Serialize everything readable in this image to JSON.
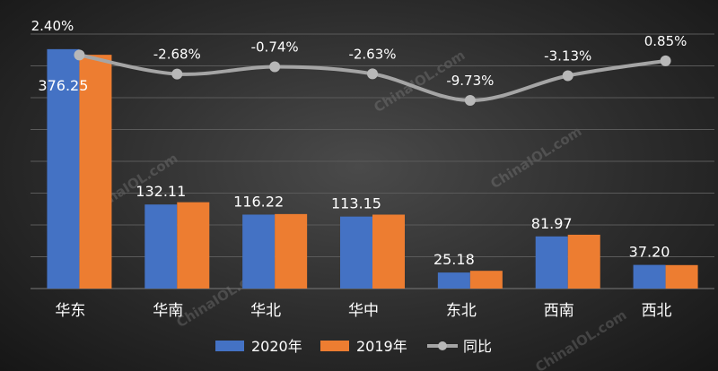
{
  "chart_data": {
    "type": "bar+line",
    "categories": [
      "华东",
      "华南",
      "华北",
      "华中",
      "东北",
      "西南",
      "西北"
    ],
    "series": [
      {
        "name": "2020年",
        "type": "bar",
        "color": "#4472c4",
        "values": [
          376.25,
          132.11,
          116.22,
          113.15,
          25.18,
          81.97,
          37.2
        ],
        "labels": [
          "376.25",
          "132.11",
          "116.22",
          "113.15",
          "25.18",
          "81.97",
          "37.20"
        ]
      },
      {
        "name": "2019年",
        "type": "bar",
        "color": "#ed7d31",
        "values": [
          367.4,
          135.7,
          117.1,
          116.2,
          27.9,
          84.6,
          36.9
        ]
      },
      {
        "name": "同比",
        "type": "line",
        "color": "#a5a5a5",
        "values": [
          2.4,
          -2.68,
          -0.74,
          -2.63,
          -9.73,
          -3.13,
          0.85
        ],
        "labels": [
          "2.40%",
          "-2.68%",
          "-0.74%",
          "-2.63%",
          "-9.73%",
          "-3.13%",
          "0.85%"
        ]
      }
    ],
    "ylim": [
      0,
      400
    ],
    "y2lim": [
      -60,
      8
    ],
    "grid": true,
    "legend": "bottom"
  },
  "watermark": "ChinaIOL.com"
}
